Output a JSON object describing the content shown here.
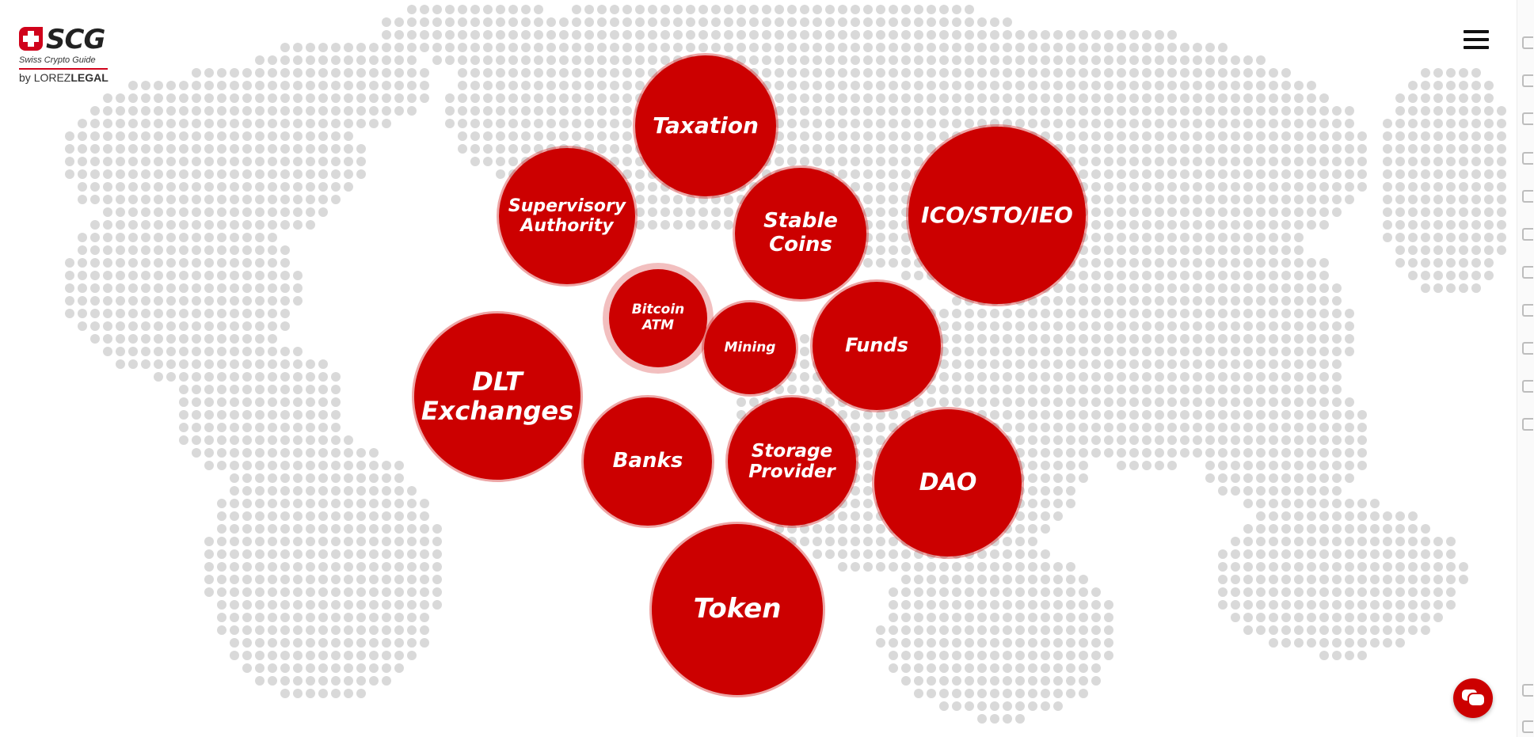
{
  "logo": {
    "brand": "SCG",
    "tagline": "Swiss Crypto Guide",
    "by": "by",
    "partner_light": "LOREZ",
    "partner_bold": "LEGAL"
  },
  "colors": {
    "bubble": "#cc0000",
    "map_dot": "#d9d9d9",
    "background": "#ffffff"
  },
  "bubbles": [
    {
      "label": "Taxation"
    },
    {
      "label": "Supervisory\nAuthority"
    },
    {
      "label": "Stable\nCoins"
    },
    {
      "label": "ICO/STO/IEO"
    },
    {
      "label": "Bitcoin\nATM"
    },
    {
      "label": "Mining"
    },
    {
      "label": "Funds"
    },
    {
      "label": "DLT\nExchanges"
    },
    {
      "label": "Banks"
    },
    {
      "label": "Storage\nProvider"
    },
    {
      "label": "DAO"
    },
    {
      "label": "Token"
    }
  ],
  "icons": {
    "menu": "hamburger-menu-icon",
    "chat": "chat-bubbles-icon"
  }
}
